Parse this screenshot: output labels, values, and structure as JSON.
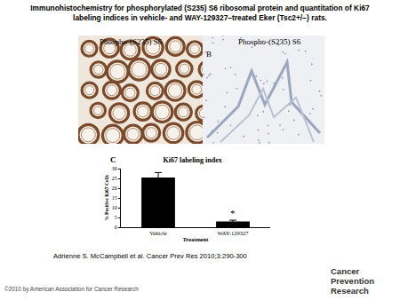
{
  "header": {
    "title_lines": [
      "Immunohistochemistry for phosphorylated (S235) S6 ribosomal protein and quantitation of Ki67",
      "labeling indices in vehicle- and WAY-129327–treated Eker (Tsc2+/−) rats."
    ]
  },
  "panels": [
    {
      "label": "Phospho-(S235) S6"
    },
    {
      "letter": "B",
      "label": "Phospho-(S235) S6"
    },
    {
      "letter": "C"
    }
  ],
  "caption": "Adrienne S. McCampbell et al. Cancer Prev Res 2010;3:290-300",
  "footer": "©2010 by American Association for Cancer Research",
  "logo": [
    "Cancer",
    "Prevention Research"
  ],
  "chart_data": {
    "type": "bar",
    "title": "Ki67 labeling index",
    "x_label": "Treatment",
    "y_label": "% Positive Ki67 Cells",
    "categories": [
      "Vehicle",
      "WAY-129327"
    ],
    "values": [
      25.5,
      3.0
    ],
    "errors": [
      2.5,
      0.6
    ],
    "color": "#000000",
    "ylim": [
      0,
      30
    ],
    "yticks": [
      0,
      5,
      10,
      15,
      20,
      25,
      30
    ],
    "grid": false,
    "annotations": [
      {
        "category": "WAY-129327",
        "text": "*"
      }
    ]
  }
}
